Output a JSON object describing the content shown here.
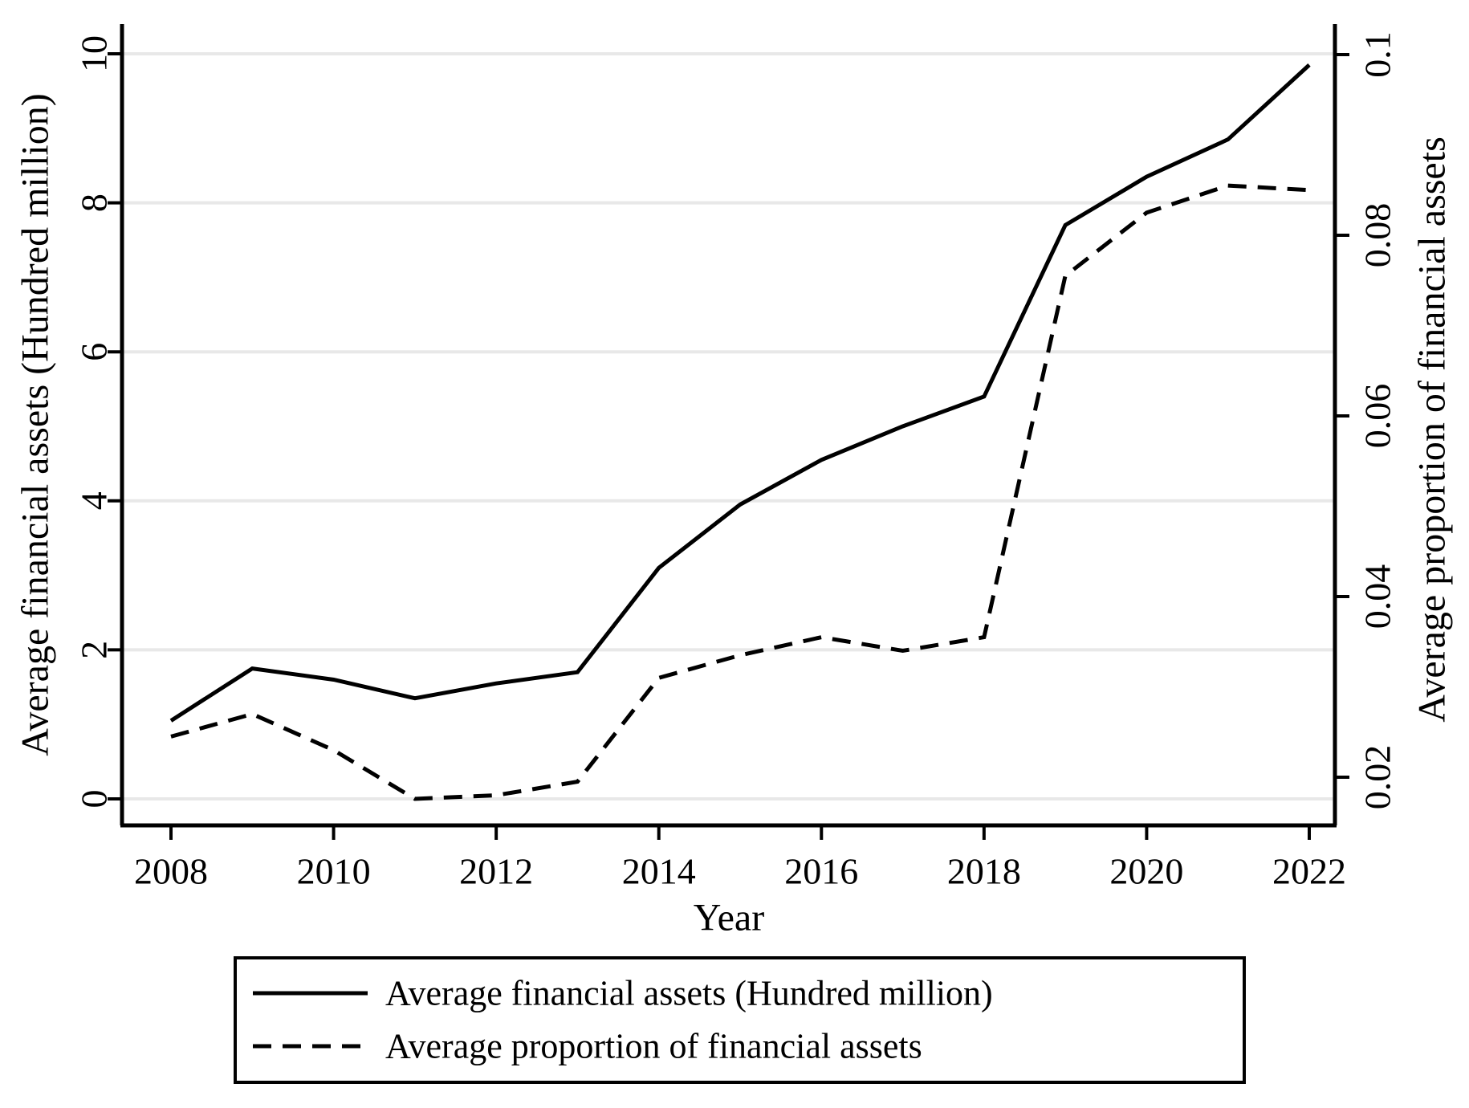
{
  "chart_data": {
    "type": "line",
    "title": "",
    "xlabel": "Year",
    "ylabel_left": "Average financial assets (Hundred million)",
    "ylabel_right": "Average proportion of financial assets",
    "x": [
      2008,
      2009,
      2010,
      2011,
      2012,
      2013,
      2014,
      2015,
      2016,
      2017,
      2018,
      2019,
      2020,
      2021,
      2022
    ],
    "series": [
      {
        "name": "Average financial assets (Hundred million)",
        "axis": "left",
        "style": "solid",
        "color": "#000000",
        "values": [
          1.05,
          1.75,
          1.6,
          1.35,
          1.55,
          1.7,
          3.1,
          3.95,
          4.55,
          5.0,
          5.4,
          7.7,
          8.35,
          8.85,
          9.85
        ]
      },
      {
        "name": "Average proportion of financial assets",
        "axis": "right",
        "style": "dashed",
        "color": "#000000",
        "values": [
          0.0245,
          0.027,
          0.023,
          0.0176,
          0.018,
          0.0195,
          0.031,
          0.0335,
          0.0355,
          0.034,
          0.0355,
          0.0755,
          0.0825,
          0.0855,
          0.085
        ]
      }
    ],
    "x_ticks": [
      2008,
      2010,
      2012,
      2014,
      2016,
      2018,
      2020,
      2022
    ],
    "x_tick_labels": [
      "2008",
      "2010",
      "2012",
      "2014",
      "2016",
      "2018",
      "2020",
      "2022"
    ],
    "y_left_ticks": [
      0,
      2,
      4,
      6,
      8,
      10
    ],
    "y_left_tick_labels": [
      "0",
      "2",
      "4",
      "6",
      "8",
      "10"
    ],
    "y_right_ticks": [
      0.02,
      0.04,
      0.06,
      0.08,
      0.1
    ],
    "y_right_tick_labels": [
      "0.02",
      "0.04",
      "0.06",
      "0.08",
      "0.1"
    ],
    "ylim_left": [
      -0.36,
      10.4
    ],
    "ylim_right": [
      0.0147,
      0.1034
    ],
    "grid": "horizontal gridlines at left-axis ticks",
    "grid_color": "#e8e8e8",
    "axis_color": "#000000",
    "legend_position": "bottom",
    "legend": [
      "Average financial assets (Hundred million)",
      "Average proportion of financial assets"
    ]
  }
}
